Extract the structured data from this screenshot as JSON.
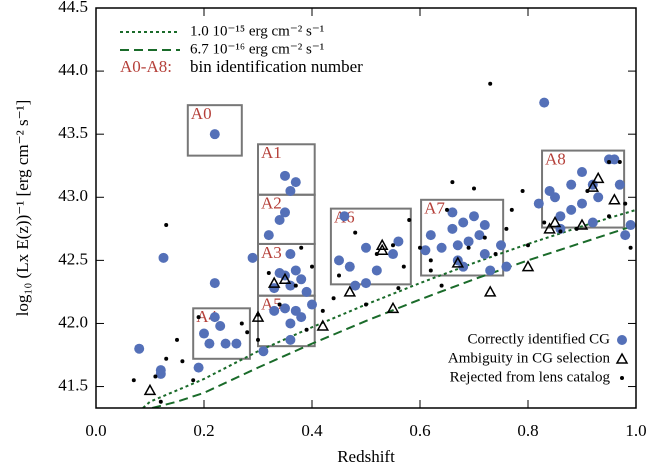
{
  "chart_data": {
    "type": "scatter",
    "xlabel": "Redshift",
    "ylabel": "log₁₀ (Lx E(z))⁻¹  [erg cm⁻² s⁻¹]",
    "xlim": [
      0,
      1
    ],
    "ylim": [
      41.33,
      44.5
    ],
    "xticks": [
      {
        "value": 0,
        "label": "0.0"
      },
      0.2,
      0.4,
      0.6,
      0.8,
      {
        "value": 1,
        "label": "1.0"
      }
    ],
    "yticks": [
      41.5,
      {
        "value": 42,
        "label": "42.0"
      },
      42.5,
      {
        "value": 43,
        "label": "43.0"
      },
      43.5,
      {
        "value": 44,
        "label": "44.0"
      },
      44.5
    ],
    "annotation": {
      "key": "A0-A8:",
      "text": "bin identification number"
    },
    "lines": [
      {
        "name": "1.0 10⁻¹⁵ erg cm⁻² s⁻¹",
        "color": "#1a6b2a",
        "style": "dotted",
        "x": [
          0.087,
          0.1,
          0.15,
          0.2,
          0.3,
          0.4,
          0.5,
          0.6,
          0.7,
          0.8,
          0.9,
          1.0
        ],
        "values": [
          41.33,
          41.38,
          41.47,
          41.56,
          41.78,
          41.97,
          42.15,
          42.32,
          42.48,
          42.63,
          42.77,
          42.9
        ]
      },
      {
        "name": "6.7 10⁻¹⁶ erg cm⁻² s⁻¹",
        "color": "#1a6b2a",
        "style": "dashed",
        "x": [
          0.104,
          0.15,
          0.2,
          0.3,
          0.4,
          0.5,
          0.6,
          0.7,
          0.8,
          0.9,
          1.0
        ],
        "values": [
          41.33,
          41.38,
          41.45,
          41.65,
          41.84,
          42.02,
          42.19,
          42.35,
          42.5,
          42.64,
          42.78
        ]
      }
    ],
    "regions": [
      {
        "label": "A0",
        "xlim": [
          0.17,
          0.27
        ],
        "ylim": [
          43.33,
          43.73
        ]
      },
      {
        "label": "A1",
        "xlim": [
          0.3,
          0.405
        ],
        "ylim": [
          43.02,
          43.42
        ]
      },
      {
        "label": "A2",
        "xlim": [
          0.3,
          0.405
        ],
        "ylim": [
          42.63,
          43.02
        ]
      },
      {
        "label": "A3",
        "xlim": [
          0.3,
          0.405
        ],
        "ylim": [
          42.22,
          42.63
        ]
      },
      {
        "label": "A4",
        "xlim": [
          0.18,
          0.285
        ],
        "ylim": [
          41.72,
          42.12
        ]
      },
      {
        "label": "A5",
        "xlim": [
          0.3,
          0.405
        ],
        "ylim": [
          41.82,
          42.22
        ]
      },
      {
        "label": "A6",
        "xlim": [
          0.435,
          0.583
        ],
        "ylim": [
          42.31,
          42.91
        ]
      },
      {
        "label": "A7",
        "xlim": [
          0.602,
          0.754
        ],
        "ylim": [
          42.38,
          42.98
        ]
      },
      {
        "label": "A8",
        "xlim": [
          0.826,
          0.978
        ],
        "ylim": [
          42.76,
          43.37
        ]
      }
    ],
    "series": [
      {
        "name": "Correctly identified CG",
        "color": "#5470b8",
        "marker": "circle",
        "x": [
          0.08,
          0.12,
          0.12,
          0.125,
          0.22,
          0.22,
          0.22,
          0.2,
          0.21,
          0.23,
          0.24,
          0.26,
          0.19,
          0.29,
          0.31,
          0.35,
          0.37,
          0.36,
          0.35,
          0.32,
          0.34,
          0.36,
          0.34,
          0.35,
          0.37,
          0.38,
          0.36,
          0.33,
          0.39,
          0.35,
          0.37,
          0.38,
          0.36,
          0.4,
          0.33,
          0.36,
          0.45,
          0.46,
          0.48,
          0.5,
          0.52,
          0.55,
          0.47,
          0.5,
          0.56,
          0.61,
          0.62,
          0.64,
          0.66,
          0.67,
          0.68,
          0.69,
          0.7,
          0.71,
          0.72,
          0.66,
          0.68,
          0.72,
          0.73,
          0.75,
          0.67,
          0.76,
          0.83,
          0.84,
          0.85,
          0.86,
          0.88,
          0.9,
          0.92,
          0.93,
          0.95,
          0.96,
          0.97,
          0.88,
          0.9,
          0.92,
          0.98,
          0.99,
          0.86,
          0.82
        ],
        "values": [
          41.8,
          41.6,
          41.63,
          42.52,
          43.5,
          42.32,
          42.05,
          41.92,
          41.84,
          41.98,
          41.84,
          41.84,
          41.65,
          42.52,
          41.78,
          43.17,
          43.12,
          43.05,
          42.88,
          42.7,
          42.82,
          42.55,
          42.4,
          42.38,
          42.42,
          42.35,
          42.3,
          42.28,
          42.25,
          42.12,
          42.1,
          42.05,
          42.0,
          42.15,
          42.1,
          41.87,
          42.5,
          42.85,
          42.3,
          42.6,
          42.42,
          42.55,
          42.45,
          42.32,
          42.65,
          42.58,
          42.7,
          42.6,
          42.75,
          42.5,
          42.8,
          42.65,
          42.85,
          42.7,
          42.78,
          42.88,
          42.45,
          42.55,
          42.42,
          42.62,
          42.62,
          42.45,
          43.75,
          43.05,
          43.0,
          42.85,
          43.1,
          43.2,
          43.1,
          43.0,
          43.3,
          43.3,
          43.1,
          42.9,
          42.95,
          42.8,
          42.7,
          42.78,
          42.75,
          42.95
        ]
      },
      {
        "name": "Ambiguity in CG selection",
        "color": "#000000",
        "marker": "triangle",
        "x": [
          0.1,
          0.3,
          0.33,
          0.35,
          0.42,
          0.47,
          0.53,
          0.53,
          0.55,
          0.67,
          0.73,
          0.8,
          0.84,
          0.9,
          0.92,
          0.93,
          0.96,
          0.85
        ],
        "values": [
          41.47,
          42.05,
          42.32,
          42.35,
          41.98,
          42.25,
          42.62,
          42.58,
          42.12,
          42.48,
          42.25,
          42.45,
          42.75,
          42.78,
          43.08,
          43.15,
          42.98,
          42.8
        ]
      },
      {
        "name": "Rejected from lens catalog",
        "color": "#000000",
        "marker": "dot",
        "x": [
          0.07,
          0.11,
          0.12,
          0.13,
          0.13,
          0.15,
          0.16,
          0.18,
          0.19,
          0.27,
          0.28,
          0.3,
          0.3,
          0.32,
          0.34,
          0.37,
          0.38,
          0.39,
          0.4,
          0.42,
          0.44,
          0.45,
          0.48,
          0.5,
          0.52,
          0.55,
          0.56,
          0.57,
          0.58,
          0.6,
          0.62,
          0.64,
          0.65,
          0.66,
          0.7,
          0.72,
          0.73,
          0.74,
          0.76,
          0.77,
          0.79,
          0.8,
          0.83,
          0.86,
          0.89,
          0.91,
          0.95,
          0.97,
          0.98,
          0.95,
          0.99,
          0.62,
          0.69
        ],
        "values": [
          41.55,
          41.58,
          41.38,
          42.78,
          41.72,
          41.87,
          41.7,
          41.55,
          42.05,
          42.0,
          41.93,
          41.87,
          42.07,
          42.4,
          42.15,
          42.3,
          42.6,
          41.95,
          42.45,
          42.1,
          42.2,
          42.38,
          42.72,
          42.15,
          42.55,
          42.62,
          42.28,
          42.45,
          42.82,
          42.6,
          42.42,
          42.3,
          42.9,
          43.12,
          43.07,
          42.68,
          43.9,
          42.55,
          42.75,
          42.9,
          43.05,
          42.62,
          42.8,
          42.73,
          42.75,
          43.05,
          43.28,
          43.28,
          42.95,
          42.85,
          42.6,
          42.5,
          42.6
        ]
      }
    ]
  }
}
